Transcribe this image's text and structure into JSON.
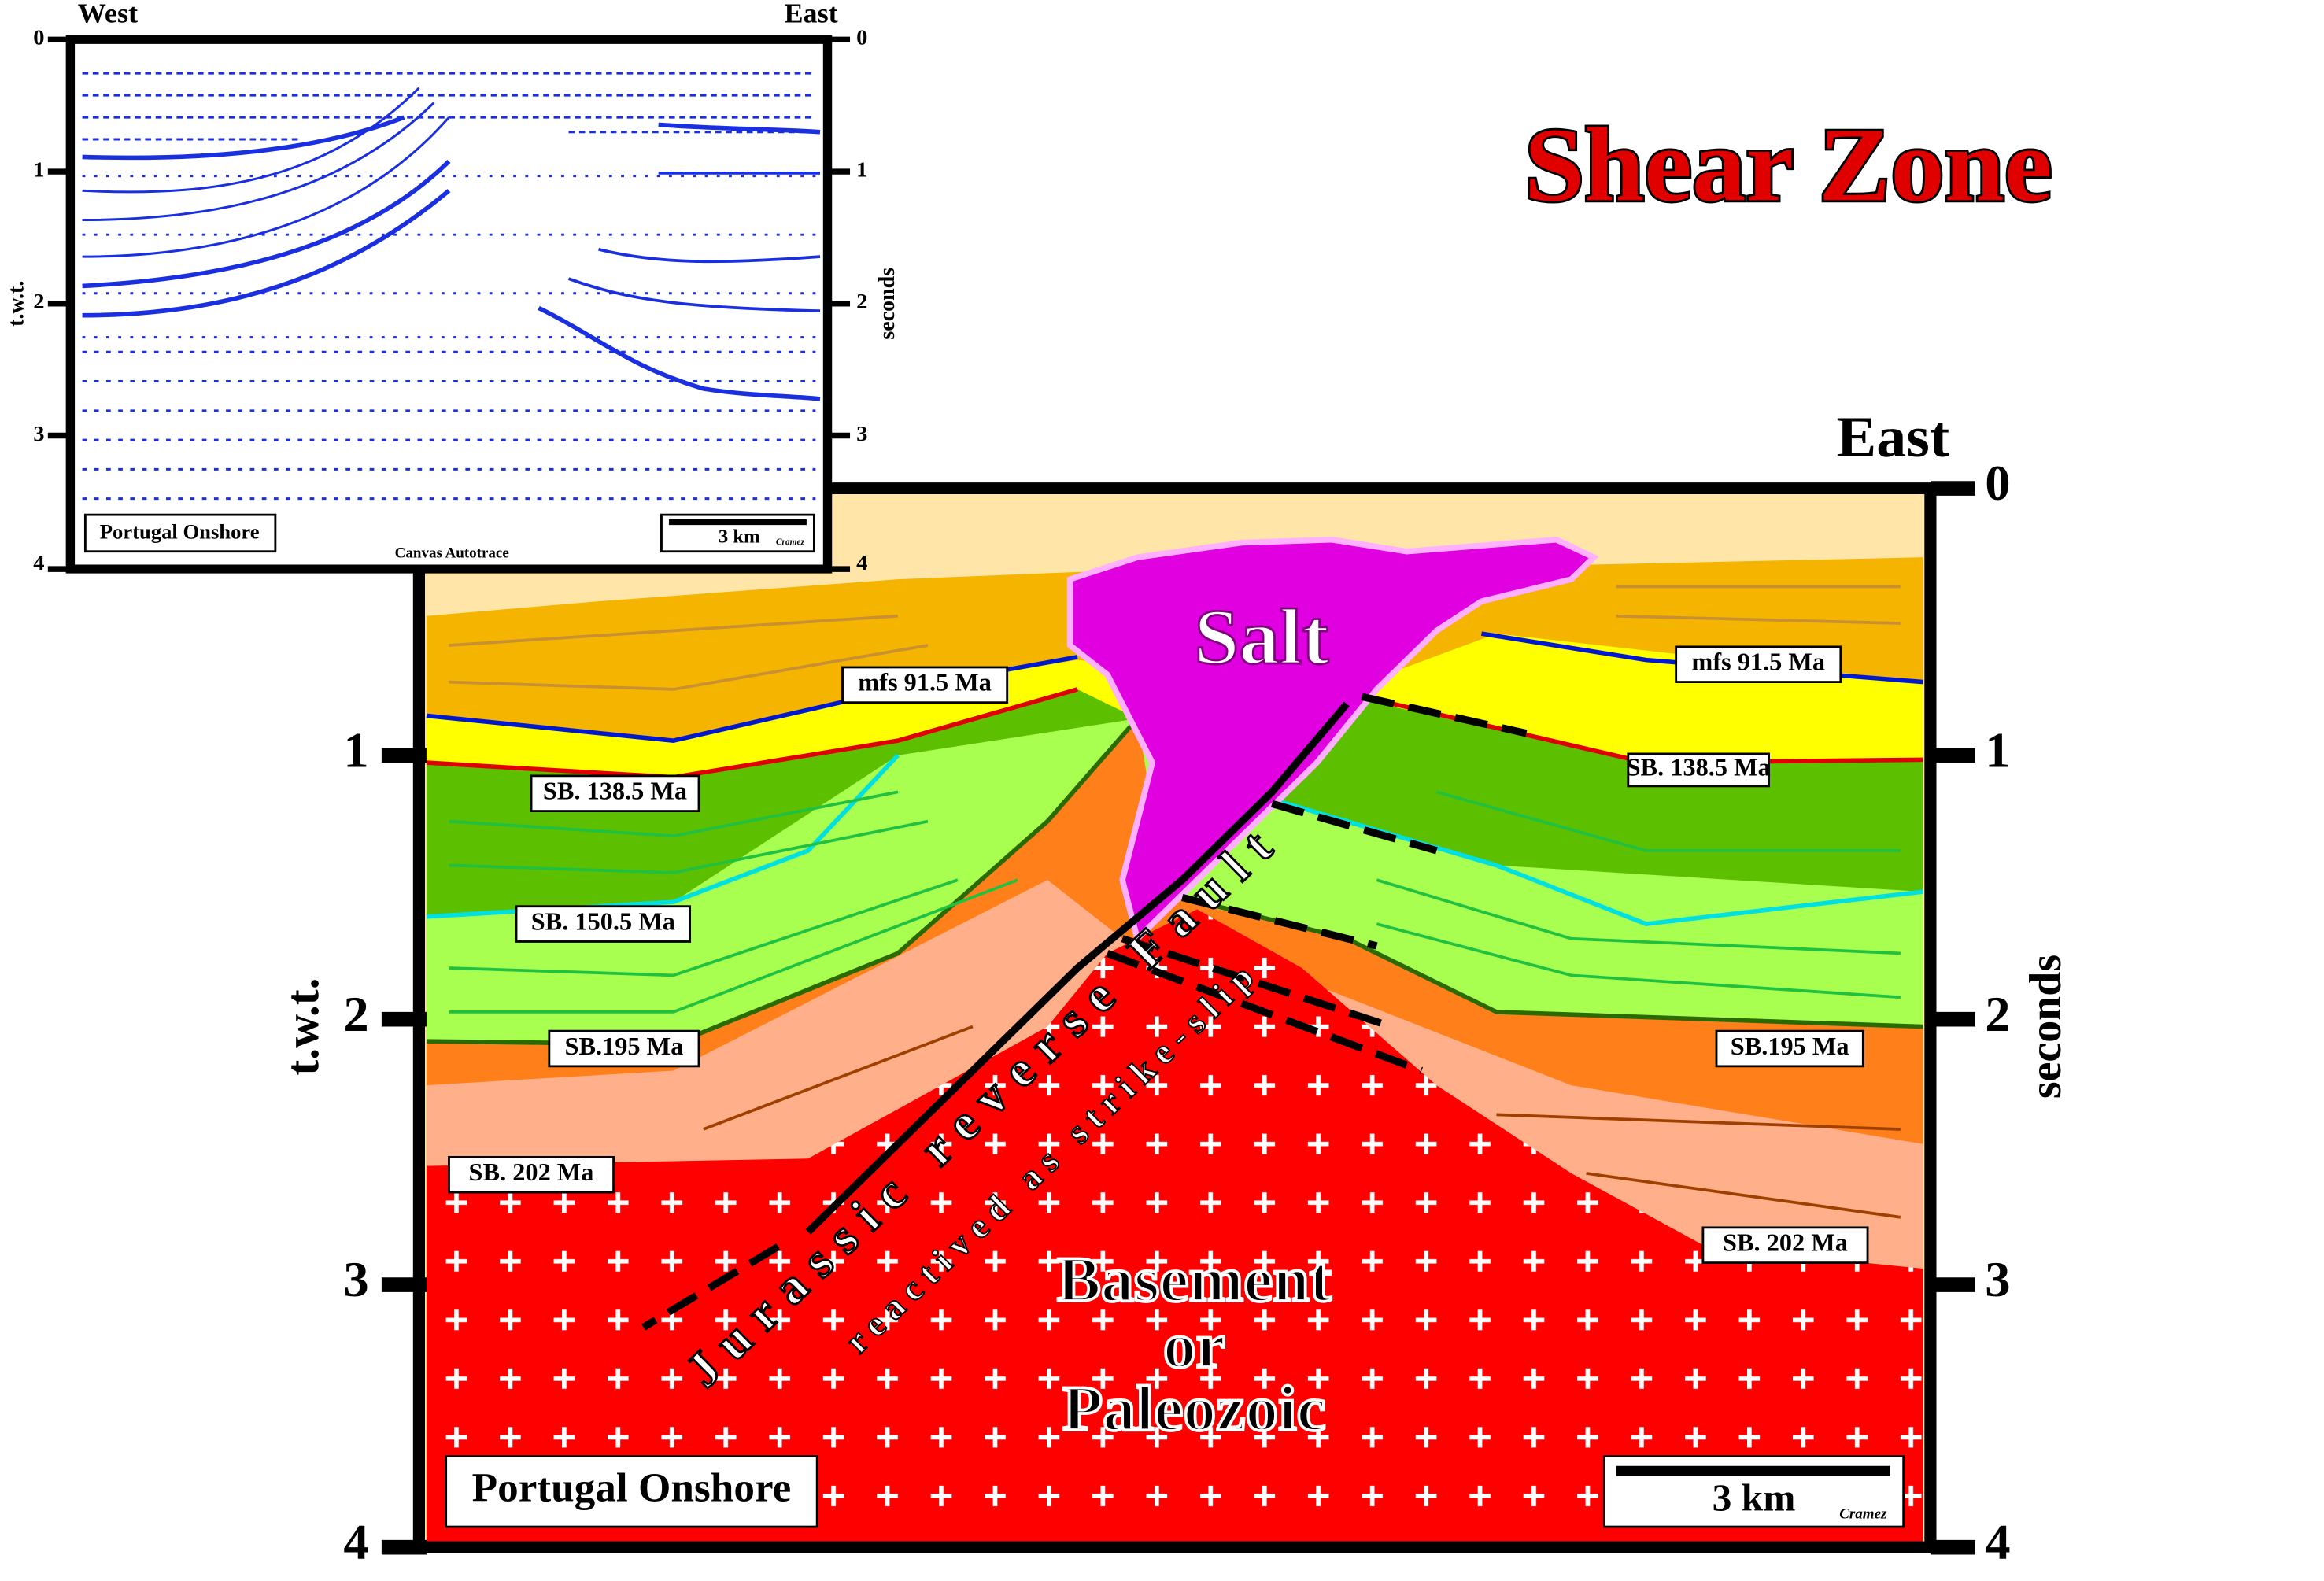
{
  "title": "Shear Zone",
  "inset": {
    "west": "West",
    "east": "East",
    "left_ticks": [
      "0",
      "1",
      "2",
      "3",
      "4"
    ],
    "right_ticks": [
      "0",
      "1",
      "2",
      "3",
      "4"
    ],
    "left_axis_label": "t.w.t.",
    "right_axis_label": "seconds",
    "location": "Portugal Onshore",
    "scale": "3 km",
    "credit": "Cramez",
    "software": "Canvas Autotrace"
  },
  "section": {
    "east": "East",
    "left_ticks": [
      "1",
      "2",
      "3",
      "4"
    ],
    "right_ticks": [
      "0",
      "1",
      "2",
      "3",
      "4"
    ],
    "left_axis_label": "t.w.t.",
    "right_axis_label": "seconds",
    "horizon_labels": [
      "mfs 91.5 Ma",
      "SB. 138.5 Ma",
      "SB. 150.5 Ma",
      "SB.195 Ma",
      "SB. 202 Ma",
      "mfs 91.5 Ma",
      "SB. 138.5 Ma",
      "SB.195 Ma",
      "SB. 202 Ma"
    ],
    "salt": "Salt",
    "basement": [
      "Basement",
      "or",
      "Paleozoic"
    ],
    "fault": "Jurassic reverse Fault",
    "fault_note": "reactived as strike-slip",
    "location": "Portugal Onshore",
    "scale": "3 km",
    "credit": "Cramez"
  }
}
